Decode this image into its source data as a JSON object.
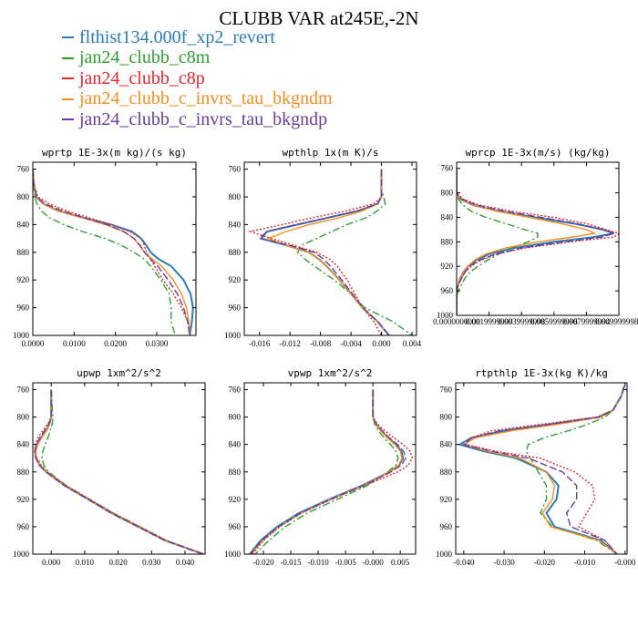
{
  "title": "CLUBB VAR at245E,-2N",
  "legend": [
    {
      "label": "flthist134.000f_xp2_revert",
      "color": "#2a7bb7"
    },
    {
      "label": "jan24_clubb_c8m",
      "color": "#2fa02f"
    },
    {
      "label": "jan24_clubb_c8p",
      "color": "#e3262a"
    },
    {
      "label": "jan24_clubb_c_invrs_tau_bkgndm",
      "color": "#f68e1f"
    },
    {
      "label": "jan24_clubb_c_invrs_tau_bkgndp",
      "color": "#6a3d9a"
    }
  ],
  "chart_data": [
    {
      "type": "line",
      "title": "wprtp  1E-3x(m kg)/(s kg)",
      "xlim": [
        0,
        0.0395
      ],
      "ylim": [
        1000,
        750
      ],
      "xticks": [
        0,
        0.01,
        0.02,
        0.03
      ],
      "xticklabels": [
        "0.0000",
        "0.0100",
        "0.0200",
        "0.0300"
      ],
      "yticks": [
        760,
        800,
        840,
        880,
        920,
        960,
        1000
      ],
      "yticklabels": [
        "760",
        "800",
        "840",
        "880",
        "920",
        "960",
        "1000"
      ],
      "y": [
        760,
        780,
        800,
        810,
        820,
        830,
        840,
        850,
        860,
        870,
        880,
        890,
        900,
        920,
        940,
        960,
        980,
        1000
      ],
      "series": [
        {
          "name": "flthist134.000f_xp2_revert",
          "values": [
            0.0,
            0.0002,
            0.0008,
            0.0025,
            0.006,
            0.012,
            0.019,
            0.024,
            0.0262,
            0.0275,
            0.0285,
            0.0305,
            0.0335,
            0.0365,
            0.0382,
            0.0388,
            0.0385,
            0.038
          ]
        },
        {
          "name": "jan24_clubb_c8m",
          "values": [
            0.0,
            0.0001,
            0.0005,
            0.001,
            0.002,
            0.004,
            0.0075,
            0.012,
            0.0175,
            0.0215,
            0.0245,
            0.027,
            0.0285,
            0.031,
            0.033,
            0.0335,
            0.0335,
            0.0345
          ]
        },
        {
          "name": "jan24_clubb_c8p",
          "values": [
            0.0,
            0.0002,
            0.0012,
            0.004,
            0.008,
            0.0135,
            0.019,
            0.0235,
            0.0262,
            0.027,
            0.0275,
            0.0285,
            0.0295,
            0.0315,
            0.034,
            0.036,
            0.0375,
            0.038
          ]
        },
        {
          "name": "jan24_clubb_c_invrs_tau_bkgndm",
          "values": [
            0.0,
            0.0002,
            0.0008,
            0.0025,
            0.006,
            0.012,
            0.0175,
            0.022,
            0.0245,
            0.0258,
            0.027,
            0.029,
            0.0312,
            0.034,
            0.036,
            0.0372,
            0.0378,
            0.038
          ]
        },
        {
          "name": "jan24_clubb_c_invrs_tau_bkgndp",
          "values": [
            0.0,
            0.0002,
            0.001,
            0.003,
            0.007,
            0.0125,
            0.018,
            0.022,
            0.0245,
            0.026,
            0.027,
            0.0285,
            0.0302,
            0.0328,
            0.035,
            0.0365,
            0.0375,
            0.038
          ]
        }
      ]
    },
    {
      "type": "line",
      "title": "wpthlp  1x(m K)/s",
      "xlim": [
        -0.018,
        0.0046
      ],
      "ylim": [
        1000,
        750
      ],
      "xticks": [
        -0.016,
        -0.012,
        -0.008,
        -0.004,
        0,
        0.004
      ],
      "xticklabels": [
        "-0.016",
        "-0.012",
        "-0.008",
        "-0.004",
        "0.000",
        "0.004"
      ],
      "yticks": [
        760,
        800,
        840,
        880,
        920,
        960,
        1000
      ],
      "yticklabels": [
        "760",
        "800",
        "840",
        "880",
        "920",
        "960",
        "1000"
      ],
      "y": [
        760,
        790,
        800,
        810,
        820,
        830,
        840,
        850,
        860,
        870,
        880,
        890,
        900,
        920,
        940,
        960,
        980,
        1000
      ],
      "series": [
        {
          "name": "flthist134.000f_xp2_revert",
          "values": [
            0.0,
            0.0,
            0.0,
            -0.0005,
            -0.003,
            -0.007,
            -0.011,
            -0.015,
            -0.0158,
            -0.0125,
            -0.0095,
            -0.0082,
            -0.0072,
            -0.0055,
            -0.004,
            -0.0025,
            -0.0005,
            0.001
          ]
        },
        {
          "name": "jan24_clubb_c8m",
          "values": [
            0.0,
            0.0,
            0.0003,
            0.0005,
            -0.0005,
            -0.002,
            -0.0045,
            -0.0065,
            -0.0085,
            -0.0105,
            -0.011,
            -0.01,
            -0.0088,
            -0.0062,
            -0.004,
            -0.0022,
            0.0015,
            0.004
          ]
        },
        {
          "name": "jan24_clubb_c8p",
          "values": [
            0.0,
            0.0,
            0.0,
            -0.001,
            -0.0045,
            -0.009,
            -0.013,
            -0.0172,
            -0.0145,
            -0.0115,
            -0.0085,
            -0.0068,
            -0.0058,
            -0.0045,
            -0.0035,
            -0.0025,
            -0.001,
            0.0
          ]
        },
        {
          "name": "jan24_clubb_c_invrs_tau_bkgndm",
          "values": [
            0.0,
            0.0,
            0.0,
            -0.0005,
            -0.0025,
            -0.0055,
            -0.0095,
            -0.0125,
            -0.0148,
            -0.0125,
            -0.0095,
            -0.0082,
            -0.0072,
            -0.0055,
            -0.004,
            -0.0025,
            -0.0005,
            0.001
          ]
        },
        {
          "name": "jan24_clubb_c_invrs_tau_bkgndp",
          "values": [
            0.0,
            0.0,
            0.0,
            -0.0005,
            -0.003,
            -0.007,
            -0.011,
            -0.015,
            -0.016,
            -0.012,
            -0.0088,
            -0.0076,
            -0.0067,
            -0.0052,
            -0.0038,
            -0.0024,
            -0.0005,
            0.001
          ]
        }
      ]
    },
    {
      "type": "line",
      "title": "wprcp  1E-3x(m/s) (kg/kg)",
      "xlim": [
        0,
        1
      ],
      "ylim": [
        1000,
        750
      ],
      "xticks": [
        0,
        0.2,
        0.4,
        0.6,
        0.8,
        1.0
      ],
      "xticklabels": [
        "0.0000000000",
        "0.0019999999",
        "0.0039999998",
        "0.0059999996",
        "0.0079999994",
        "0.0099999980"
      ],
      "yticks": [
        760,
        800,
        840,
        880,
        920,
        960,
        1000
      ],
      "yticklabels": [
        "760",
        "800",
        "840",
        "880",
        "920",
        "960",
        "1000"
      ],
      "y": [
        760,
        800,
        810,
        820,
        830,
        840,
        850,
        860,
        866,
        872,
        880,
        890,
        900,
        910,
        920,
        930,
        940,
        950,
        960,
        970,
        980,
        1000
      ],
      "series": [
        {
          "name": "flthist134.000f_xp2_revert",
          "values": [
            0,
            0,
            0.02,
            0.1,
            0.26,
            0.48,
            0.72,
            0.9,
            0.97,
            0.85,
            0.6,
            0.35,
            0.2,
            0.12,
            0.07,
            0.04,
            0.02,
            0.01,
            0,
            0,
            0,
            0
          ]
        },
        {
          "name": "jan24_clubb_c8m",
          "values": [
            0,
            0,
            0.01,
            0.04,
            0.09,
            0.18,
            0.3,
            0.42,
            0.5,
            0.5,
            0.44,
            0.34,
            0.26,
            0.19,
            0.13,
            0.08,
            0.05,
            0.03,
            0.01,
            0,
            0,
            0
          ]
        },
        {
          "name": "jan24_clubb_c8p",
          "values": [
            0,
            0,
            0.04,
            0.14,
            0.34,
            0.6,
            0.8,
            0.92,
            1.0,
            0.97,
            0.7,
            0.42,
            0.25,
            0.15,
            0.09,
            0.05,
            0.03,
            0.01,
            0,
            0,
            0,
            0
          ]
        },
        {
          "name": "jan24_clubb_c_invrs_tau_bkgndm",
          "values": [
            0,
            0,
            0.02,
            0.1,
            0.25,
            0.45,
            0.64,
            0.8,
            0.85,
            0.72,
            0.5,
            0.3,
            0.18,
            0.11,
            0.07,
            0.04,
            0.02,
            0.01,
            0,
            0,
            0,
            0
          ]
        },
        {
          "name": "jan24_clubb_c_invrs_tau_bkgndp",
          "values": [
            0,
            0,
            0.03,
            0.12,
            0.3,
            0.52,
            0.74,
            0.9,
            0.97,
            0.9,
            0.66,
            0.4,
            0.24,
            0.14,
            0.08,
            0.05,
            0.03,
            0.01,
            0,
            0,
            0,
            0
          ]
        }
      ]
    },
    {
      "type": "line",
      "title": "upwp  1xm^2/s^2",
      "xlim": [
        -0.0055,
        0.046
      ],
      "ylim": [
        1000,
        750
      ],
      "xticks": [
        0,
        0.01,
        0.02,
        0.03,
        0.04
      ],
      "xticklabels": [
        "0.000",
        "0.010",
        "0.020",
        "0.030",
        "0.040"
      ],
      "yticks": [
        760,
        800,
        840,
        880,
        920,
        960,
        1000
      ],
      "yticklabels": [
        "760",
        "800",
        "840",
        "880",
        "920",
        "960",
        "1000"
      ],
      "y": [
        760,
        800,
        810,
        820,
        830,
        840,
        850,
        860,
        870,
        880,
        900,
        920,
        940,
        960,
        980,
        1000
      ],
      "series": [
        {
          "name": "flthist134.000f_xp2_revert",
          "values": [
            0.0,
            0.0,
            -0.0005,
            -0.0015,
            -0.003,
            -0.0042,
            -0.0048,
            -0.0045,
            -0.0035,
            -0.0015,
            0.004,
            0.011,
            0.018,
            0.026,
            0.034,
            0.0455
          ]
        },
        {
          "name": "jan24_clubb_c8m",
          "values": [
            0.0,
            0.0005,
            0.0003,
            -0.0003,
            -0.001,
            -0.0018,
            -0.0025,
            -0.0028,
            -0.0022,
            -0.0008,
            0.0045,
            0.0115,
            0.0185,
            0.0265,
            0.0345,
            0.0455
          ]
        },
        {
          "name": "jan24_clubb_c8p",
          "values": [
            0.0,
            0.0,
            -0.001,
            -0.0025,
            -0.004,
            -0.0048,
            -0.005,
            -0.0042,
            -0.003,
            -0.0012,
            0.0045,
            0.0115,
            0.0185,
            0.0265,
            0.0345,
            0.0455
          ]
        },
        {
          "name": "jan24_clubb_c_invrs_tau_bkgndm",
          "values": [
            0.0,
            0.0,
            -0.0005,
            -0.0015,
            -0.0028,
            -0.004,
            -0.0046,
            -0.0044,
            -0.0034,
            -0.0015,
            0.004,
            0.011,
            0.018,
            0.026,
            0.034,
            0.0455
          ]
        },
        {
          "name": "jan24_clubb_c_invrs_tau_bkgndp",
          "values": [
            0.0,
            0.0,
            -0.0007,
            -0.002,
            -0.0034,
            -0.0044,
            -0.0049,
            -0.0046,
            -0.0036,
            -0.0016,
            0.004,
            0.011,
            0.018,
            0.026,
            0.034,
            0.0455
          ]
        }
      ]
    },
    {
      "type": "line",
      "title": "vpwp  1xm^2/s^2",
      "xlim": [
        -0.0235,
        0.0078
      ],
      "ylim": [
        1000,
        750
      ],
      "xticks": [
        -0.02,
        -0.015,
        -0.01,
        -0.005,
        0,
        0.005
      ],
      "xticklabels": [
        "-0.020",
        "-0.015",
        "-0.010",
        "-0.005",
        "-0.000",
        "0.005"
      ],
      "yticks": [
        760,
        800,
        840,
        880,
        920,
        960,
        1000
      ],
      "yticklabels": [
        "760",
        "800",
        "840",
        "880",
        "920",
        "960",
        "1000"
      ],
      "y": [
        760,
        800,
        810,
        820,
        830,
        840,
        850,
        860,
        870,
        880,
        900,
        920,
        940,
        960,
        980,
        1000
      ],
      "series": [
        {
          "name": "flthist134.000f_xp2_revert",
          "values": [
            0.0,
            0.0,
            0.0005,
            0.0015,
            0.0028,
            0.0042,
            0.0052,
            0.0055,
            0.0048,
            0.003,
            -0.002,
            -0.008,
            -0.0135,
            -0.0175,
            -0.0205,
            -0.0225
          ]
        },
        {
          "name": "jan24_clubb_c8m",
          "values": [
            0.0,
            0.0,
            0.0003,
            0.001,
            0.002,
            0.0032,
            0.0042,
            0.0046,
            0.0042,
            0.0027,
            -0.001,
            -0.0065,
            -0.012,
            -0.016,
            -0.019,
            -0.0215
          ]
        },
        {
          "name": "jan24_clubb_c8p",
          "values": [
            0.0,
            0.0,
            0.0008,
            0.0022,
            0.0038,
            0.0055,
            0.0068,
            0.0072,
            0.0065,
            0.0045,
            -0.0015,
            -0.0075,
            -0.013,
            -0.017,
            -0.02,
            -0.022
          ]
        },
        {
          "name": "jan24_clubb_c_invrs_tau_bkgndm",
          "values": [
            0.0,
            0.0,
            0.0005,
            0.0014,
            0.0026,
            0.004,
            0.005,
            0.0053,
            0.0047,
            0.003,
            -0.0018,
            -0.0078,
            -0.0132,
            -0.0172,
            -0.0202,
            -0.0222
          ]
        },
        {
          "name": "jan24_clubb_c_invrs_tau_bkgndp",
          "values": [
            0.0,
            0.0,
            0.0006,
            0.0017,
            0.003,
            0.0045,
            0.0056,
            0.006,
            0.0052,
            0.0033,
            -0.0017,
            -0.0077,
            -0.0132,
            -0.0172,
            -0.0203,
            -0.0224
          ]
        }
      ]
    },
    {
      "type": "line",
      "title": "rtpthlp  1E-3x(kg K)/kg",
      "xlim": [
        -0.042,
        0.0005
      ],
      "ylim": [
        1000,
        750
      ],
      "xticks": [
        -0.04,
        -0.03,
        -0.02,
        -0.01,
        0
      ],
      "xticklabels": [
        "-0.040",
        "-0.030",
        "-0.020",
        "-0.010",
        "-0.000"
      ],
      "yticks": [
        760,
        800,
        840,
        880,
        920,
        960,
        1000
      ],
      "yticklabels": [
        "760",
        "800",
        "840",
        "880",
        "920",
        "960",
        "1000"
      ],
      "y": [
        755,
        770,
        790,
        800,
        810,
        820,
        830,
        840,
        850,
        860,
        880,
        900,
        920,
        940,
        960,
        980,
        1000
      ],
      "series": [
        {
          "name": "flthist134.000f_xp2_revert",
          "values": [
            -0.0002,
            -0.001,
            -0.003,
            -0.0065,
            -0.018,
            -0.03,
            -0.038,
            -0.041,
            -0.035,
            -0.027,
            -0.0195,
            -0.0165,
            -0.017,
            -0.0195,
            -0.0175,
            -0.006,
            -0.002
          ]
        },
        {
          "name": "jan24_clubb_c8m",
          "values": [
            -0.0002,
            -0.001,
            -0.003,
            -0.005,
            -0.009,
            -0.014,
            -0.02,
            -0.024,
            -0.0245,
            -0.0235,
            -0.0215,
            -0.0195,
            -0.0195,
            -0.021,
            -0.018,
            -0.007,
            -0.002
          ]
        },
        {
          "name": "jan24_clubb_c8p",
          "values": [
            -0.0002,
            -0.001,
            -0.003,
            -0.007,
            -0.02,
            -0.033,
            -0.038,
            -0.0395,
            -0.032,
            -0.021,
            -0.0125,
            -0.008,
            -0.0075,
            -0.0095,
            -0.0115,
            -0.005,
            -0.002
          ]
        },
        {
          "name": "jan24_clubb_c_invrs_tau_bkgndm",
          "values": [
            -0.0002,
            -0.001,
            -0.003,
            -0.006,
            -0.016,
            -0.028,
            -0.037,
            -0.04,
            -0.034,
            -0.026,
            -0.0195,
            -0.0175,
            -0.018,
            -0.0205,
            -0.0185,
            -0.0065,
            -0.002
          ]
        },
        {
          "name": "jan24_clubb_c_invrs_tau_bkgndp",
          "values": [
            -0.0002,
            -0.001,
            -0.003,
            -0.0065,
            -0.018,
            -0.031,
            -0.038,
            -0.04,
            -0.033,
            -0.024,
            -0.0155,
            -0.012,
            -0.012,
            -0.0145,
            -0.0135,
            -0.005,
            -0.002
          ]
        }
      ]
    }
  ]
}
